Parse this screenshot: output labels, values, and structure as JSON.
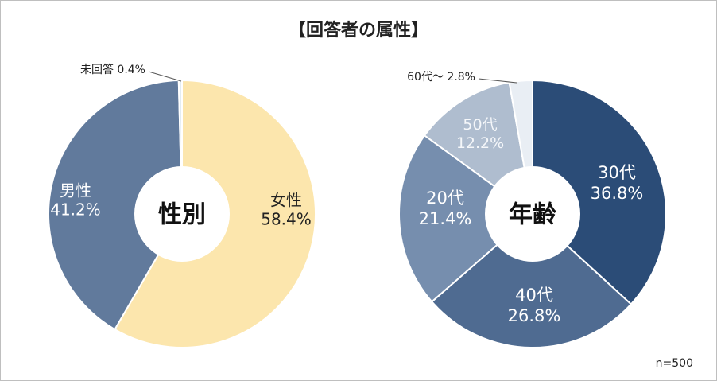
{
  "title": "【回答者の属性】",
  "note": "n=500",
  "colors": {
    "female": "#fce6ad",
    "male": "#617a9c",
    "no_answer": "#e3ecf2",
    "age30": "#2b4c77",
    "age40": "#4f6b91",
    "age20": "#768eae",
    "age50": "#afbdcf",
    "age60": "#e9eef4"
  },
  "chart_data": [
    {
      "type": "pie",
      "center_label": "性別",
      "slices": [
        {
          "name": "女性",
          "value": 58.4,
          "value_label": "58.4%",
          "color": "#fce6ad"
        },
        {
          "name": "男性",
          "value": 41.2,
          "value_label": "41.2%",
          "color": "#617a9c"
        },
        {
          "name": "未回答",
          "value": 0.4,
          "value_label": "0.4%",
          "color": "#e3ecf2"
        }
      ]
    },
    {
      "type": "pie",
      "center_label": "年齢",
      "slices": [
        {
          "name": "30代",
          "value": 36.8,
          "value_label": "36.8%",
          "color": "#2b4c77"
        },
        {
          "name": "40代",
          "value": 26.8,
          "value_label": "26.8%",
          "color": "#4f6b91"
        },
        {
          "name": "20代",
          "value": 21.4,
          "value_label": "21.4%",
          "color": "#768eae"
        },
        {
          "name": "50代",
          "value": 12.2,
          "value_label": "12.2%",
          "color": "#afbdcf"
        },
        {
          "name": "60代～",
          "value": 2.8,
          "value_label": "2.8%",
          "color": "#e9eef4"
        }
      ]
    }
  ]
}
